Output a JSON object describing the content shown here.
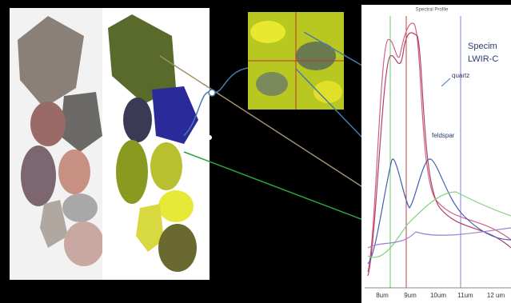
{
  "chart_title": "Spectral Profile",
  "brand": [
    "Specim",
    "LWIR-C"
  ],
  "labels": {
    "quartz": "quartz",
    "feldspar": "feldspar"
  },
  "x_labels": [
    "8um",
    "9um",
    "10um",
    "11um",
    "12 um"
  ]
}
